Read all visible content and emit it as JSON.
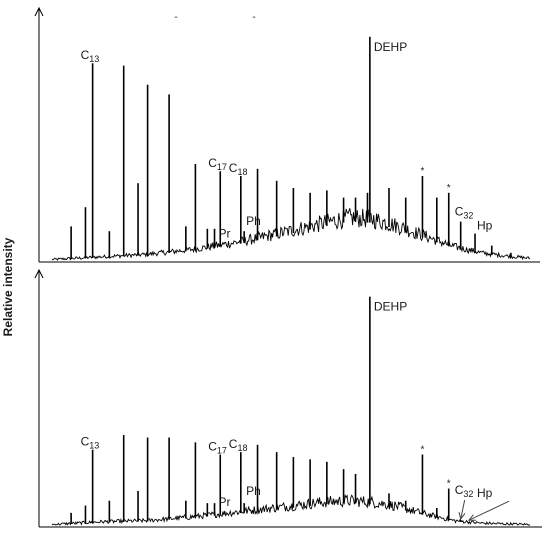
{
  "y_axis_label": "Relative intensity",
  "panel_top_dashes": [
    "-",
    "-"
  ],
  "chart_data": [
    {
      "type": "line",
      "title": "",
      "xlabel": "",
      "ylabel": "Relative intensity",
      "grid": false,
      "legend": "none",
      "x_range": [
        0,
        1
      ],
      "y_range": [
        0,
        1
      ],
      "baseline": [
        {
          "x": 0.0,
          "y": 0.0
        },
        {
          "x": 0.1,
          "y": 0.01
        },
        {
          "x": 0.2,
          "y": 0.02
        },
        {
          "x": 0.3,
          "y": 0.04
        },
        {
          "x": 0.4,
          "y": 0.07
        },
        {
          "x": 0.5,
          "y": 0.11
        },
        {
          "x": 0.57,
          "y": 0.14
        },
        {
          "x": 0.62,
          "y": 0.16
        },
        {
          "x": 0.67,
          "y": 0.155
        },
        {
          "x": 0.72,
          "y": 0.13
        },
        {
          "x": 0.78,
          "y": 0.09
        },
        {
          "x": 0.84,
          "y": 0.05
        },
        {
          "x": 0.9,
          "y": 0.025
        },
        {
          "x": 0.96,
          "y": 0.012
        },
        {
          "x": 1.0,
          "y": 0.005
        }
      ],
      "peaks": [
        {
          "x": 0.04,
          "y": 0.14
        },
        {
          "x": 0.07,
          "y": 0.22
        },
        {
          "x": 0.085,
          "y": 0.82,
          "label": "C",
          "sub": "13"
        },
        {
          "x": 0.12,
          "y": 0.12
        },
        {
          "x": 0.15,
          "y": 0.81
        },
        {
          "x": 0.18,
          "y": 0.32
        },
        {
          "x": 0.2,
          "y": 0.73
        },
        {
          "x": 0.245,
          "y": 0.69
        },
        {
          "x": 0.28,
          "y": 0.14
        },
        {
          "x": 0.3,
          "y": 0.4
        },
        {
          "x": 0.325,
          "y": 0.13
        },
        {
          "x": 0.34,
          "y": 0.13,
          "label": "Pr"
        },
        {
          "x": 0.352,
          "y": 0.37,
          "label": "C",
          "sub": "17"
        },
        {
          "x": 0.395,
          "y": 0.35,
          "label": "C",
          "sub": "18"
        },
        {
          "x": 0.402,
          "y": 0.12,
          "label": "Ph"
        },
        {
          "x": 0.43,
          "y": 0.38
        },
        {
          "x": 0.47,
          "y": 0.33
        },
        {
          "x": 0.505,
          "y": 0.3
        },
        {
          "x": 0.54,
          "y": 0.28
        },
        {
          "x": 0.575,
          "y": 0.29
        },
        {
          "x": 0.61,
          "y": 0.26
        },
        {
          "x": 0.635,
          "y": 0.26
        },
        {
          "x": 0.66,
          "y": 0.28
        },
        {
          "x": 0.665,
          "y": 0.93,
          "label": "DEHP"
        },
        {
          "x": 0.705,
          "y": 0.3
        },
        {
          "x": 0.74,
          "y": 0.26
        },
        {
          "x": 0.775,
          "y": 0.35,
          "label": "*"
        },
        {
          "x": 0.805,
          "y": 0.26
        },
        {
          "x": 0.83,
          "y": 0.28,
          "label": "*"
        },
        {
          "x": 0.855,
          "y": 0.16,
          "label": "C",
          "sub": "32"
        },
        {
          "x": 0.885,
          "y": 0.11,
          "label": "Hp"
        },
        {
          "x": 0.92,
          "y": 0.06
        },
        {
          "x": 0.96,
          "y": 0.03
        }
      ]
    },
    {
      "type": "line",
      "title": "",
      "xlabel": "",
      "ylabel": "Relative intensity",
      "grid": false,
      "legend": "none",
      "x_range": [
        0,
        1
      ],
      "y_range": [
        0,
        1
      ],
      "baseline": [
        {
          "x": 0.0,
          "y": 0.0
        },
        {
          "x": 0.1,
          "y": 0.01
        },
        {
          "x": 0.2,
          "y": 0.015
        },
        {
          "x": 0.3,
          "y": 0.03
        },
        {
          "x": 0.4,
          "y": 0.05
        },
        {
          "x": 0.5,
          "y": 0.07
        },
        {
          "x": 0.57,
          "y": 0.085
        },
        {
          "x": 0.62,
          "y": 0.09
        },
        {
          "x": 0.67,
          "y": 0.085
        },
        {
          "x": 0.72,
          "y": 0.07
        },
        {
          "x": 0.78,
          "y": 0.04
        },
        {
          "x": 0.84,
          "y": 0.015
        },
        {
          "x": 0.9,
          "y": 0.005
        },
        {
          "x": 1.0,
          "y": 0.0
        }
      ],
      "peaks": [
        {
          "x": 0.04,
          "y": 0.05
        },
        {
          "x": 0.07,
          "y": 0.08
        },
        {
          "x": 0.085,
          "y": 0.31,
          "label": "C",
          "sub": "13"
        },
        {
          "x": 0.12,
          "y": 0.1
        },
        {
          "x": 0.15,
          "y": 0.37
        },
        {
          "x": 0.18,
          "y": 0.14
        },
        {
          "x": 0.2,
          "y": 0.36
        },
        {
          "x": 0.245,
          "y": 0.36
        },
        {
          "x": 0.28,
          "y": 0.1
        },
        {
          "x": 0.3,
          "y": 0.34
        },
        {
          "x": 0.325,
          "y": 0.09
        },
        {
          "x": 0.34,
          "y": 0.09,
          "label": "Pr"
        },
        {
          "x": 0.352,
          "y": 0.29,
          "label": "C",
          "sub": "17"
        },
        {
          "x": 0.395,
          "y": 0.3,
          "label": "C",
          "sub": "18"
        },
        {
          "x": 0.402,
          "y": 0.09,
          "label": "Ph"
        },
        {
          "x": 0.43,
          "y": 0.33
        },
        {
          "x": 0.47,
          "y": 0.3
        },
        {
          "x": 0.505,
          "y": 0.28
        },
        {
          "x": 0.54,
          "y": 0.27
        },
        {
          "x": 0.575,
          "y": 0.26
        },
        {
          "x": 0.61,
          "y": 0.23
        },
        {
          "x": 0.635,
          "y": 0.21
        },
        {
          "x": 0.665,
          "y": 0.94,
          "label": "DEHP"
        },
        {
          "x": 0.705,
          "y": 0.13
        },
        {
          "x": 0.74,
          "y": 0.1
        },
        {
          "x": 0.775,
          "y": 0.29,
          "label": "*"
        },
        {
          "x": 0.805,
          "y": 0.07
        },
        {
          "x": 0.83,
          "y": 0.15,
          "label": "*"
        },
        {
          "x": 0.855,
          "y": 0.02,
          "label": "C",
          "sub": "32"
        },
        {
          "x": 0.885,
          "y": 0.01,
          "label": "Hp"
        },
        {
          "x": 0.92,
          "y": 0.005
        }
      ]
    }
  ]
}
